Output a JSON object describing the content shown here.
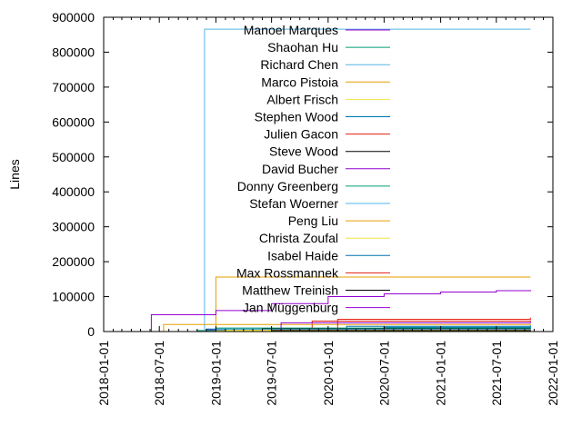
{
  "chart_data": {
    "type": "line",
    "title": "",
    "xlabel": "",
    "ylabel": "Lines",
    "xlim": [
      "2018-01-01",
      "2022-01-01"
    ],
    "ylim": [
      0,
      900000
    ],
    "x_ticks": [
      "2018-01-01",
      "2018-07-01",
      "2019-01-01",
      "2019-07-01",
      "2020-01-01",
      "2020-07-01",
      "2021-01-01",
      "2021-07-01",
      "2022-01-01"
    ],
    "y_ticks": [
      0,
      100000,
      200000,
      300000,
      400000,
      500000,
      600000,
      700000,
      800000,
      900000
    ],
    "legend_position": "top-right",
    "step": true,
    "series": [
      {
        "name": "Manoel Marques",
        "color": "#9400d3",
        "points": [
          [
            "2018-05-01",
            0
          ],
          [
            "2018-12-01",
            5000
          ],
          [
            "2021-10-20",
            5000
          ]
        ]
      },
      {
        "name": "Shaohan Hu",
        "color": "#009e73",
        "points": [
          [
            "2018-06-01",
            0
          ],
          [
            "2018-11-01",
            3000
          ],
          [
            "2021-10-20",
            3000
          ]
        ]
      },
      {
        "name": "Richard Chen",
        "color": "#56b4e9",
        "points": [
          [
            "2018-11-15",
            0
          ],
          [
            "2018-11-25",
            866000
          ],
          [
            "2021-10-20",
            866000
          ]
        ]
      },
      {
        "name": "Marco Pistoia",
        "color": "#e69f00",
        "points": [
          [
            "2018-11-01",
            0
          ],
          [
            "2019-01-01",
            156000
          ],
          [
            "2021-10-20",
            156000
          ]
        ]
      },
      {
        "name": "Albert Frisch",
        "color": "#f0e442",
        "points": [
          [
            "2018-07-01",
            0
          ],
          [
            "2019-01-01",
            2000
          ],
          [
            "2021-10-20",
            2000
          ]
        ]
      },
      {
        "name": "Stephen Wood",
        "color": "#0072b2",
        "points": [
          [
            "2018-11-20",
            0
          ],
          [
            "2018-12-01",
            7000
          ],
          [
            "2020-07-01",
            12000
          ],
          [
            "2021-10-20",
            14000
          ]
        ]
      },
      {
        "name": "Julien Gacon",
        "color": "#e51e10",
        "points": [
          [
            "2019-11-01",
            0
          ],
          [
            "2019-11-10",
            30000
          ],
          [
            "2021-10-20",
            32000
          ]
        ]
      },
      {
        "name": "Steve Wood",
        "color": "#000000",
        "points": [
          [
            "2018-06-01",
            0
          ],
          [
            "2019-06-01",
            8000
          ],
          [
            "2021-10-20",
            10000
          ]
        ]
      },
      {
        "name": "David Bucher",
        "color": "#9400d3",
        "points": [
          [
            "2018-06-01",
            0
          ],
          [
            "2018-06-05",
            48000
          ],
          [
            "2019-01-01",
            60000
          ],
          [
            "2019-07-01",
            80000
          ],
          [
            "2020-01-01",
            100000
          ],
          [
            "2020-07-01",
            108000
          ],
          [
            "2021-01-01",
            113000
          ],
          [
            "2021-07-01",
            117000
          ],
          [
            "2021-10-20",
            119000
          ]
        ]
      },
      {
        "name": "Donny Greenberg",
        "color": "#009e73",
        "points": [
          [
            "2018-11-01",
            0
          ],
          [
            "2019-01-01",
            10000
          ],
          [
            "2021-10-20",
            12000
          ]
        ]
      },
      {
        "name": "Stefan Woerner",
        "color": "#56b4e9",
        "points": [
          [
            "2018-06-01",
            0
          ],
          [
            "2019-01-01",
            6000
          ],
          [
            "2021-10-20",
            8000
          ]
        ]
      },
      {
        "name": "Peng Liu",
        "color": "#e69f00",
        "points": [
          [
            "2018-07-01",
            0
          ],
          [
            "2018-07-15",
            20000
          ],
          [
            "2021-10-20",
            22000
          ]
        ]
      },
      {
        "name": "Christa Zoufal",
        "color": "#f0e442",
        "points": [
          [
            "2019-01-01",
            0
          ],
          [
            "2019-02-01",
            4000
          ],
          [
            "2021-10-20",
            5000
          ]
        ]
      },
      {
        "name": "Isabel Haide",
        "color": "#0072b2",
        "points": [
          [
            "2019-06-01",
            0
          ],
          [
            "2020-03-01",
            15000
          ],
          [
            "2021-10-20",
            18000
          ]
        ]
      },
      {
        "name": "Max Rossmannek",
        "color": "#e51e10",
        "points": [
          [
            "2020-01-01",
            0
          ],
          [
            "2020-02-01",
            35000
          ],
          [
            "2021-10-20",
            40000
          ]
        ]
      },
      {
        "name": "Matthew Treinish",
        "color": "#000000",
        "points": [
          [
            "2019-06-01",
            0
          ],
          [
            "2019-07-01",
            3000
          ],
          [
            "2021-10-20",
            5000
          ]
        ]
      },
      {
        "name": "Jan Müggenburg",
        "color": "#9400d3",
        "points": [
          [
            "2018-09-01",
            0
          ],
          [
            "2019-08-01",
            25000
          ],
          [
            "2021-10-20",
            28000
          ]
        ]
      }
    ]
  }
}
